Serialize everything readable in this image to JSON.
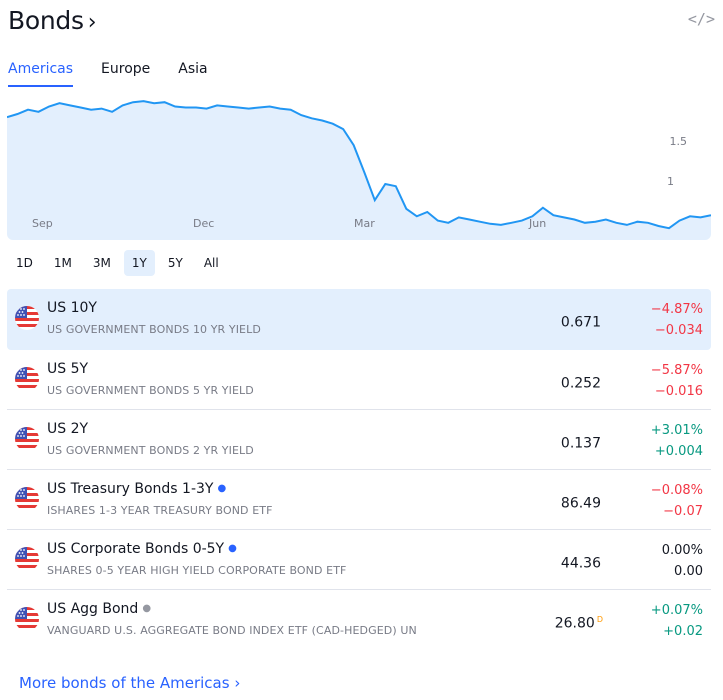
{
  "header": {
    "title": "Bonds",
    "title_chevron": "›",
    "embed_icon": "</>"
  },
  "tabs": [
    {
      "label": "Americas",
      "active": true
    },
    {
      "label": "Europe",
      "active": false
    },
    {
      "label": "Asia",
      "active": false
    }
  ],
  "chart": {
    "type": "area",
    "x_labels": [
      "Sep",
      "Dec",
      "Mar",
      "Jun"
    ],
    "y_labels": [
      "1.5",
      "1"
    ],
    "line_color": "#2196f3",
    "fill_color": "#e3effd",
    "series_values_approx": [
      1.64,
      1.67,
      1.71,
      1.69,
      1.74,
      1.77,
      1.75,
      1.73,
      1.71,
      1.72,
      1.69,
      1.75,
      1.78,
      1.79,
      1.77,
      1.78,
      1.74,
      1.73,
      1.73,
      1.72,
      1.75,
      1.74,
      1.73,
      1.72,
      1.73,
      1.74,
      1.72,
      1.71,
      1.66,
      1.63,
      1.61,
      1.58,
      1.53,
      1.38,
      1.13,
      0.87,
      1.02,
      1.0,
      0.79,
      0.72,
      0.76,
      0.68,
      0.66,
      0.71,
      0.69,
      0.67,
      0.65,
      0.64,
      0.66,
      0.68,
      0.72,
      0.8,
      0.73,
      0.71,
      0.69,
      0.66,
      0.67,
      0.69,
      0.66,
      0.64,
      0.67,
      0.66,
      0.63,
      0.61,
      0.68,
      0.72,
      0.71,
      0.73
    ]
  },
  "ranges": [
    {
      "label": "1D",
      "active": false
    },
    {
      "label": "1M",
      "active": false
    },
    {
      "label": "3M",
      "active": false
    },
    {
      "label": "1Y",
      "active": true
    },
    {
      "label": "5Y",
      "active": false
    },
    {
      "label": "All",
      "active": false
    }
  ],
  "rows": [
    {
      "name": "US 10Y",
      "dot": "",
      "desc": "US GOVERNMENT BONDS 10 YR YIELD",
      "price": "0.671",
      "price_flag": "",
      "chg_pct": "−4.87%",
      "chg_abs": "−0.034",
      "trend": "neg",
      "active": true
    },
    {
      "name": "US 5Y",
      "dot": "",
      "desc": "US GOVERNMENT BONDS 5 YR YIELD",
      "price": "0.252",
      "price_flag": "",
      "chg_pct": "−5.87%",
      "chg_abs": "−0.016",
      "trend": "neg",
      "active": false
    },
    {
      "name": "US 2Y",
      "dot": "",
      "desc": "US GOVERNMENT BONDS 2 YR YIELD",
      "price": "0.137",
      "price_flag": "",
      "chg_pct": "+3.01%",
      "chg_abs": "+0.004",
      "trend": "pos",
      "active": false
    },
    {
      "name": "US Treasury Bonds 1-3Y",
      "dot": "blue",
      "desc": "ISHARES 1-3 YEAR TREASURY BOND ETF",
      "price": "86.49",
      "price_flag": "",
      "chg_pct": "−0.08%",
      "chg_abs": "−0.07",
      "trend": "neg",
      "active": false
    },
    {
      "name": "US Corporate Bonds 0-5Y",
      "dot": "blue",
      "desc": "SHARES 0-5 YEAR HIGH YIELD CORPORATE BOND ETF",
      "price": "44.36",
      "price_flag": "",
      "chg_pct": "0.00%",
      "chg_abs": "0.00",
      "trend": "zero",
      "active": false
    },
    {
      "name": "US Agg Bond",
      "dot": "grey",
      "desc": "VANGUARD U.S. AGGREGATE BOND INDEX ETF (CAD-HEDGED) UN",
      "price": "26.80",
      "price_flag": "D",
      "chg_pct": "+0.07%",
      "chg_abs": "+0.02",
      "trend": "pos",
      "active": false
    }
  ],
  "more_link": "More bonds of the Americas ›"
}
